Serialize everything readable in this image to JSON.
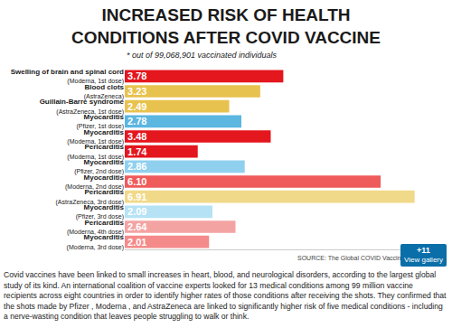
{
  "chart_data": {
    "type": "bar",
    "orientation": "horizontal",
    "title": "INCREASED RISK OF HEALTH CONDITIONS AFTER COVID VACCINE",
    "subtitle": "* out of 99,068,901 vaccinated individuals",
    "annotations": [
      "SOURCE: The Global COVID Vaccine Safety (GC"
    ],
    "categories": [
      "Swelling of brain and spinal cord (Moderna, 1st dose)",
      "Blood clots (AstraZeneca)",
      "Guillain-Barre syndrome (AstraZeneca, 1st dose)",
      "Myocarditis (Pfizer, 1st dose)",
      "Myocarditis (Moderna, 1st dose)",
      "Pericarditis (Moderna, 1st dose)",
      "Myocarditis (Pfizer, 2nd dose)",
      "Myocarditis (Moderna, 2nd dose)",
      "Pericarditis (AstraZeneca, 3rd dose)",
      "Myocarditis (Pfizer, 3rd dose)",
      "Pericarditis (Moderna, 4th dose)",
      "Myocarditis (Moderna, 3rd dose)"
    ],
    "values": [
      3.78,
      3.23,
      2.49,
      2.78,
      3.48,
      1.74,
      2.86,
      6.1,
      6.91,
      2.09,
      2.64,
      2.01
    ],
    "value_labels": [
      "3.78",
      "3.23",
      "2.49",
      "2.78",
      "3.48",
      "1.74",
      "2.86",
      "6.10",
      "6.91",
      "2.09",
      "2.64",
      "2.01"
    ],
    "colors": [
      "#e4161e",
      "#e8c24e",
      "#e8c24e",
      "#5bb6e0",
      "#e4161e",
      "#e4161e",
      "#8fd0ee",
      "#ef5a5a",
      "#f1d98a",
      "#b5e2f5",
      "#f4a3a3",
      "#f58a8a"
    ],
    "xlim": [
      0,
      7.5
    ],
    "xticks": [],
    "data_labels": true,
    "tick_labels": "y",
    "grid": false,
    "legend": "none"
  },
  "page": {
    "caption": "Covid vaccines have been linked to small increases in heart, blood, and neurological disorders, according to the largest global study of its kind. An international coalition of vaccine experts looked for 13 medical conditions among 99 million vaccine recipients across eight countries in order to identify higher rates of those conditions after receiving the shots. They confirmed that the shots made by Pfizer , Moderna , and AstraZeneca are linked to significantly higher risk of five medical conditions - including a nerve-wasting condition that leaves people struggling to walk or think.",
    "gallery_count": "+11",
    "gallery_text": "View gallery"
  }
}
